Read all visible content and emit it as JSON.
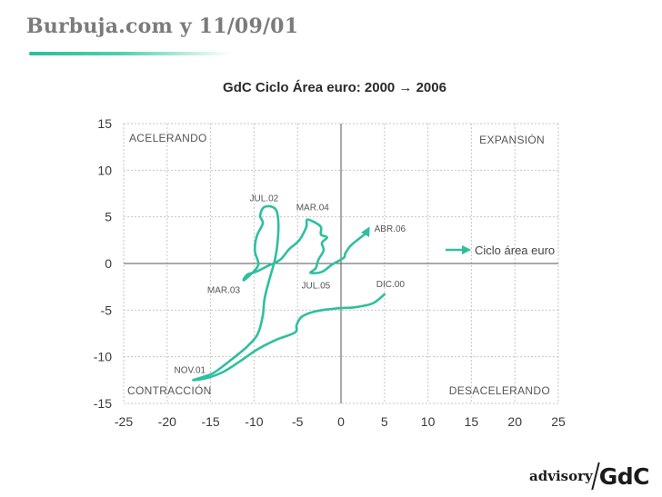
{
  "page": {
    "title": "Burbuja.com y 11/09/01"
  },
  "brand": {
    "advisory": "advisory",
    "gdc": "GdC"
  },
  "chart_data": {
    "type": "line",
    "title": "GdC Ciclo Área euro: 2000 → 2006",
    "xlim": [
      -25,
      25
    ],
    "ylim": [
      -15,
      15
    ],
    "xticks": [
      -25,
      -20,
      -15,
      -10,
      -5,
      0,
      5,
      10,
      15,
      20,
      25
    ],
    "yticks": [
      -15,
      -10,
      -5,
      0,
      5,
      10,
      15
    ],
    "grid": true,
    "legend": {
      "position": "right",
      "entry": "Ciclo área euro"
    },
    "quadrant_labels": {
      "top_left": "ACELERANDO",
      "top_right": "EXPANSIÓN",
      "bottom_left": "CONTRACCIÓN",
      "bottom_right": "DESACELERANDO"
    },
    "colors": {
      "series": "#2ebfa0",
      "grid": "#c6c6c6",
      "axis": "#555555",
      "text": "#4a4a4a"
    },
    "series": [
      {
        "name": "Ciclo área euro",
        "points": [
          [
            5.0,
            -3.3
          ],
          [
            3.6,
            -4.3
          ],
          [
            1.5,
            -4.7
          ],
          [
            -0.3,
            -4.8
          ],
          [
            -2.8,
            -5.1
          ],
          [
            -4.5,
            -5.7
          ],
          [
            -5.1,
            -6.6
          ],
          [
            -5.3,
            -7.4
          ],
          [
            -7.5,
            -8.2
          ],
          [
            -9.6,
            -9.2
          ],
          [
            -11.5,
            -10.4
          ],
          [
            -13.5,
            -11.6
          ],
          [
            -15.5,
            -12.3
          ],
          [
            -17.0,
            -12.5
          ],
          [
            -16.0,
            -12.2
          ],
          [
            -14.8,
            -11.8
          ],
          [
            -13.7,
            -11.1
          ],
          [
            -12.2,
            -10.0
          ],
          [
            -10.8,
            -8.9
          ],
          [
            -9.6,
            -7.6
          ],
          [
            -9.0,
            -5.6
          ],
          [
            -8.8,
            -3.8
          ],
          [
            -8.3,
            -1.9
          ],
          [
            -7.6,
            0.4
          ],
          [
            -7.3,
            2.2
          ],
          [
            -7.2,
            4.2
          ],
          [
            -7.4,
            5.6
          ],
          [
            -8.0,
            6.1
          ],
          [
            -8.9,
            6.0
          ],
          [
            -9.3,
            5.1
          ],
          [
            -9.0,
            4.3
          ],
          [
            -9.7,
            2.9
          ],
          [
            -9.9,
            1.3
          ],
          [
            -9.5,
            -0.1
          ],
          [
            -10.3,
            -1.1
          ],
          [
            -11.2,
            -1.8
          ],
          [
            -10.8,
            -1.2
          ],
          [
            -9.8,
            -0.9
          ],
          [
            -8.5,
            -0.3
          ],
          [
            -7.0,
            0.4
          ],
          [
            -6.0,
            1.5
          ],
          [
            -4.8,
            2.5
          ],
          [
            -4.0,
            3.9
          ],
          [
            -3.9,
            4.7
          ],
          [
            -3.0,
            4.4
          ],
          [
            -2.3,
            3.9
          ],
          [
            -2.3,
            3.1
          ],
          [
            -1.6,
            2.8
          ],
          [
            -2.2,
            2.2
          ],
          [
            -2.0,
            1.4
          ],
          [
            -2.6,
            0.4
          ],
          [
            -2.9,
            -0.5
          ],
          [
            -3.5,
            -1.0
          ],
          [
            -2.2,
            -0.9
          ],
          [
            -1.0,
            -0.1
          ],
          [
            0.3,
            0.6
          ],
          [
            0.5,
            1.1
          ],
          [
            1.1,
            1.9
          ],
          [
            2.0,
            2.6
          ],
          [
            2.8,
            3.2
          ],
          [
            3.1,
            3.6
          ]
        ]
      }
    ],
    "annotations": [
      {
        "text": "DIC.00",
        "x": 5.0,
        "y": -3.3
      },
      {
        "text": "NOV.01",
        "x": -17.0,
        "y": -12.5
      },
      {
        "text": "JUL.02",
        "x": -8.0,
        "y": 6.1
      },
      {
        "text": "MAR.03",
        "x": -11.2,
        "y": -1.8
      },
      {
        "text": "MAR.04",
        "x": -3.9,
        "y": 4.7
      },
      {
        "text": "JUL.05",
        "x": -3.5,
        "y": -1.0
      },
      {
        "text": "ABR.06",
        "x": 3.1,
        "y": 3.6
      }
    ]
  }
}
